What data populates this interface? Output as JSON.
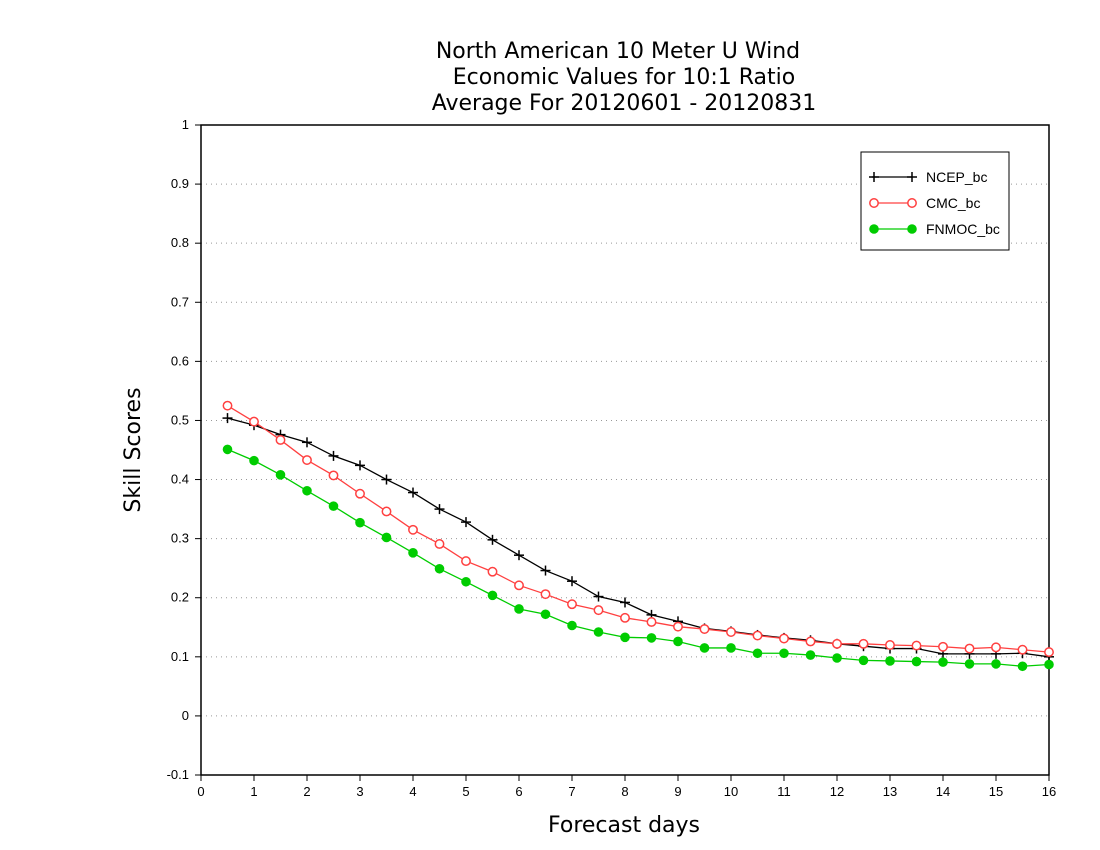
{
  "chart_data": {
    "type": "line",
    "title": [
      "North American 10 Meter U Wind",
      "Economic Values for 10:1 Ratio",
      "Average For 20120601 - 20120831"
    ],
    "xlabel": "Forecast days",
    "ylabel": "Skill Scores",
    "xlim": [
      0,
      16
    ],
    "ylim": [
      -0.1,
      1
    ],
    "xticks": [
      "0",
      "1",
      "2",
      "3",
      "4",
      "5",
      "6",
      "7",
      "8",
      "9",
      "10",
      "11",
      "12",
      "13",
      "14",
      "15",
      "16"
    ],
    "yticks": [
      "-0.1",
      "0",
      "0.1",
      "0.2",
      "0.3",
      "0.4",
      "0.5",
      "0.6",
      "0.7",
      "0.8",
      "0.9",
      "1"
    ],
    "grid": "horizontal dotted",
    "legend_position": "top-right",
    "x": [
      0.5,
      1.0,
      1.5,
      2.0,
      2.5,
      3.0,
      3.5,
      4.0,
      4.5,
      5.0,
      5.5,
      6.0,
      6.5,
      7.0,
      7.5,
      8.0,
      8.5,
      9.0,
      9.5,
      10.0,
      10.5,
      11.0,
      11.5,
      12.0,
      12.5,
      13.0,
      13.5,
      14.0,
      14.5,
      15.0,
      15.5,
      16.0
    ],
    "series": [
      {
        "name": "NCEP_bc",
        "color": "#000000",
        "marker": "plus",
        "values": [
          0.504,
          0.492,
          0.476,
          0.463,
          0.44,
          0.424,
          0.4,
          0.378,
          0.35,
          0.328,
          0.298,
          0.272,
          0.246,
          0.228,
          0.202,
          0.192,
          0.171,
          0.16,
          0.148,
          0.143,
          0.137,
          0.132,
          0.128,
          0.122,
          0.118,
          0.114,
          0.114,
          0.105,
          0.105,
          0.105,
          0.106,
          0.1
        ]
      },
      {
        "name": "CMC_bc",
        "color": "#ff4040",
        "marker": "open-circle",
        "values": [
          0.525,
          0.498,
          0.467,
          0.433,
          0.407,
          0.376,
          0.346,
          0.315,
          0.291,
          0.262,
          0.244,
          0.221,
          0.206,
          0.189,
          0.179,
          0.166,
          0.159,
          0.151,
          0.147,
          0.142,
          0.136,
          0.131,
          0.126,
          0.122,
          0.122,
          0.12,
          0.119,
          0.117,
          0.114,
          0.116,
          0.112,
          0.108
        ]
      },
      {
        "name": "FNMOC_bc",
        "color": "#00cc00",
        "marker": "filled-circle",
        "values": [
          0.451,
          0.432,
          0.408,
          0.381,
          0.355,
          0.327,
          0.302,
          0.276,
          0.249,
          0.227,
          0.204,
          0.181,
          0.172,
          0.153,
          0.142,
          0.133,
          0.132,
          0.126,
          0.115,
          0.115,
          0.106,
          0.106,
          0.103,
          0.098,
          0.094,
          0.093,
          0.092,
          0.091,
          0.088,
          0.088,
          0.084,
          0.087
        ]
      }
    ]
  }
}
